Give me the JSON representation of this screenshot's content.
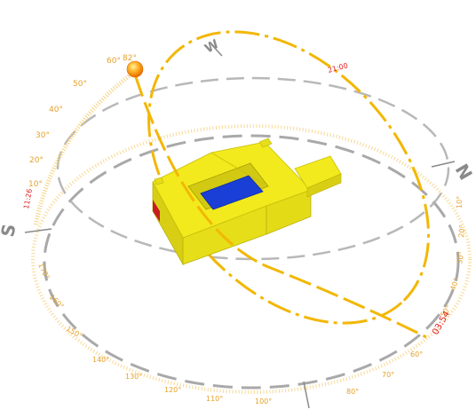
{
  "compass": {
    "north": "N",
    "south": "S",
    "west": "W"
  },
  "sun": {
    "altitude_label_left": "60°",
    "altitude_label_right": "82°",
    "time_red_bottom": "03:54",
    "time_red_left": "11:26",
    "time_red_top": "21:00"
  },
  "altitude_scale": [
    "10°",
    "20°",
    "30°",
    "40°",
    "50°"
  ],
  "azimuth_scale": [
    "100°",
    "110°",
    "120°",
    "130°",
    "140°",
    "150°",
    "160°",
    "170°",
    "80°",
    "70°",
    "60°",
    "50°",
    "40°",
    "30°",
    "20°",
    "10°"
  ],
  "colors": {
    "sunpath": "#f2b705",
    "orbit": "#a8a8a8",
    "building": "#f0e81e",
    "courtyard": "#1a3fd6",
    "sun": "#ff9a1a",
    "red_accent": "#e02020"
  }
}
